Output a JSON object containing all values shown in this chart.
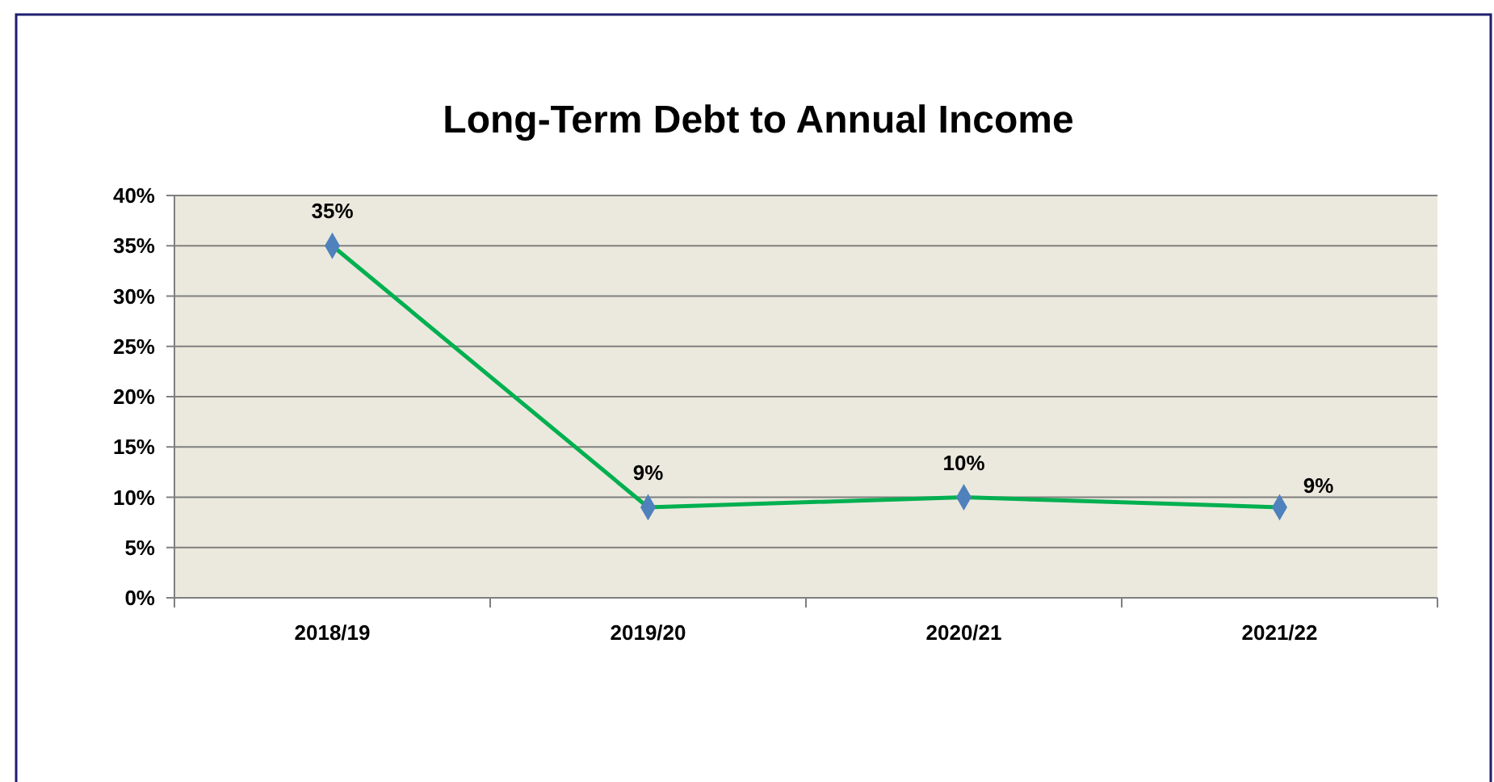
{
  "chart_data": {
    "type": "line",
    "title": "Long-Term Debt to Annual Income",
    "categories": [
      "2018/19",
      "2019/20",
      "2020/21",
      "2021/22"
    ],
    "series": [
      {
        "color": "#00b050",
        "values": [
          35,
          9,
          10,
          9
        ],
        "value_labels": [
          "35%",
          "9%",
          "10%",
          "9%"
        ]
      }
    ],
    "ylim": [
      0,
      40
    ],
    "yticks": [
      {
        "value": 0,
        "label": "0%"
      },
      {
        "value": 5,
        "label": "5%"
      },
      {
        "value": 10,
        "label": "10%"
      },
      {
        "value": 15,
        "label": "15%"
      },
      {
        "value": 20,
        "label": "20%"
      },
      {
        "value": 25,
        "label": "25%"
      },
      {
        "value": 30,
        "label": "30%"
      },
      {
        "value": 35,
        "label": "35%"
      },
      {
        "value": 40,
        "label": "40%"
      }
    ],
    "grid": "y",
    "marker": "diamond"
  }
}
